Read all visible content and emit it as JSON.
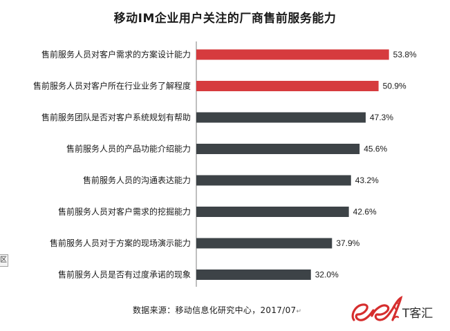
{
  "chart_data": {
    "type": "bar",
    "orientation": "horizontal",
    "title": "移动IM企业用户关注的厂商售前服务能力",
    "categories": [
      "售前服务人员对客户需求的方案设计能力",
      "售前服务人员对客户所在行业业务了解程度",
      "售前服务团队是否对客户系统规划有帮助",
      "售前服务人员的产品功能介绍能力",
      "售前服务人员的沟通表达能力",
      "售前服务人员对客户需求的挖掘能力",
      "售前服务人员对于方案的现场演示能力",
      "售前服务人员是否有过度承诺的现象"
    ],
    "values": [
      53.8,
      50.9,
      47.3,
      45.6,
      43.2,
      42.6,
      37.9,
      32.0
    ],
    "value_labels": [
      "53.8%",
      "50.9%",
      "47.3%",
      "45.6%",
      "43.2%",
      "42.6%",
      "37.9%",
      "32.0%"
    ],
    "highlight_count": 2,
    "colors": {
      "highlight": "#d63b3e",
      "default": "#3d4347",
      "axis": "#7f7f7f"
    },
    "xlabel": "",
    "ylabel": "",
    "xlim": [
      0,
      100
    ],
    "grid": false,
    "legend": "none"
  },
  "source": {
    "text": "数据来源：移动信息化研究中心，2017/07",
    "return_mark": "↵"
  },
  "edge_fragment": {
    "text": "区"
  },
  "logo": {
    "text": "T客汇",
    "mark_icon": "ee-script-logo-icon",
    "colors": {
      "red": "#d62e2e",
      "text": "#2b2b2b"
    }
  }
}
